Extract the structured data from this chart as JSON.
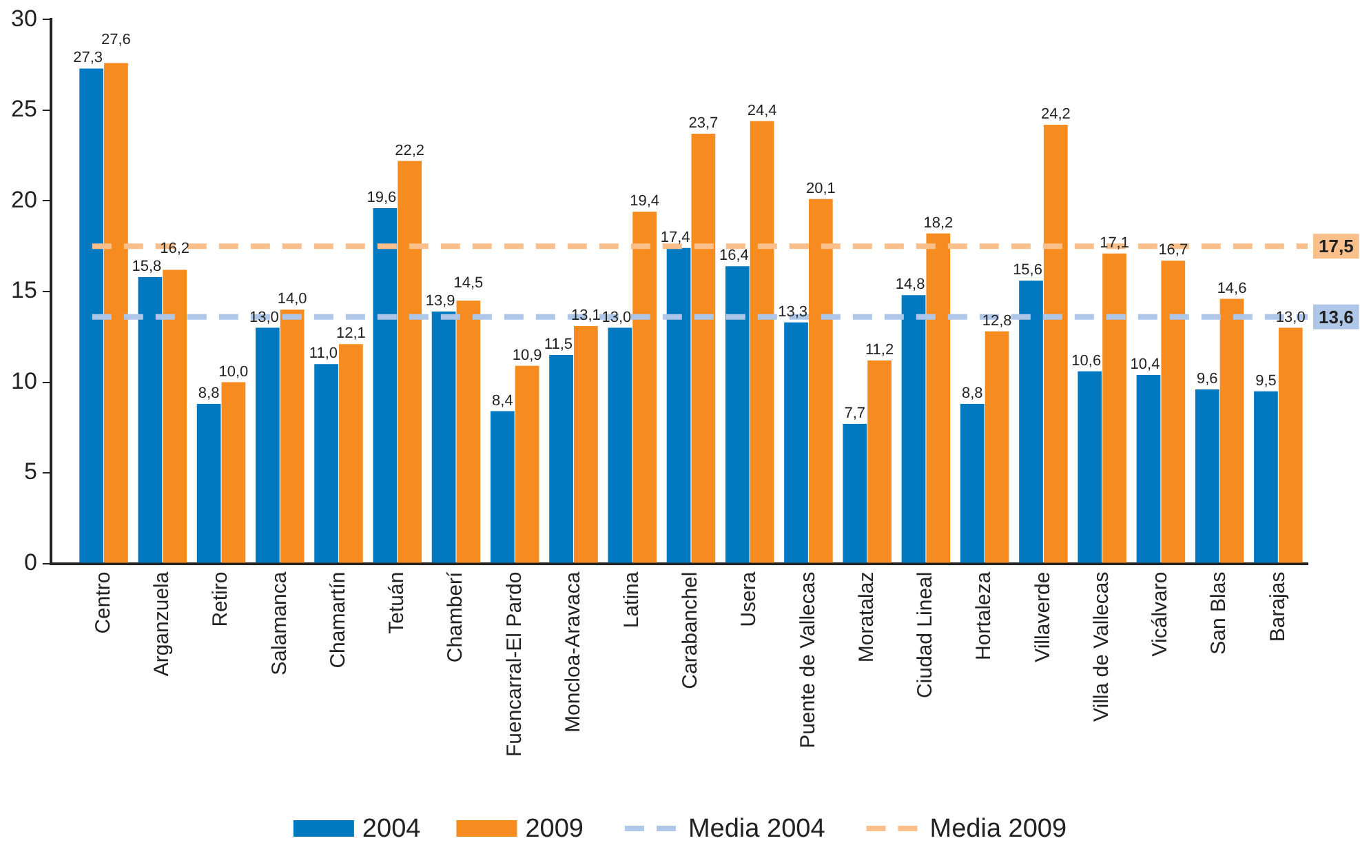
{
  "chart_data": {
    "type": "bar",
    "categories": [
      "Centro",
      "Arganzuela",
      "Retiro",
      "Salamanca",
      "Chamartín",
      "Tetuán",
      "Chamberí",
      "Fuencarral-El Pardo",
      "Moncloa-Aravaca",
      "Latina",
      "Carabanchel",
      "Usera",
      "Puente de Vallecas",
      "Moratalaz",
      "Ciudad Lineal",
      "Hortaleza",
      "Villaverde",
      "Villa de Vallecas",
      "Vicálvaro",
      "San Blas",
      "Barajas"
    ],
    "series": [
      {
        "name": "2004",
        "color": "#0079c1",
        "values": [
          27.3,
          15.8,
          8.8,
          13.0,
          11.0,
          19.6,
          13.9,
          8.4,
          11.5,
          13.0,
          17.4,
          16.4,
          13.3,
          7.7,
          14.8,
          8.8,
          15.6,
          10.6,
          10.4,
          9.6,
          9.5
        ],
        "value_labels": [
          "27,3",
          "15,8",
          "8,8",
          "13,0",
          "11,0",
          "19,6",
          "13,9",
          "8,4",
          "11,5",
          "13,0",
          "17,4",
          "16,4",
          "13,3",
          "7,7",
          "14,8",
          "8,8",
          "15,6",
          "10,6",
          "10,4",
          "9,6",
          "9,5"
        ]
      },
      {
        "name": "2009",
        "color": "#f68b1f",
        "values": [
          27.6,
          16.2,
          10.0,
          14.0,
          12.1,
          22.2,
          14.5,
          10.9,
          13.1,
          19.4,
          23.7,
          24.4,
          20.1,
          11.2,
          18.2,
          12.8,
          24.2,
          17.1,
          16.7,
          14.6,
          13.0
        ],
        "value_labels": [
          "27,6",
          "16,2",
          "10,0",
          "14,0",
          "12,1",
          "22,2",
          "14,5",
          "10,9",
          "13,1",
          "19,4",
          "23,7",
          "24,4",
          "20,1",
          "11,2",
          "18,2",
          "12,8",
          "24,2",
          "17,1",
          "16,7",
          "14,6",
          "13,0"
        ]
      }
    ],
    "ylim": [
      0,
      30
    ],
    "yticks": [
      0,
      5,
      10,
      15,
      20,
      25,
      30
    ],
    "grid": false,
    "legend": "bottom",
    "ref_lines": [
      {
        "axis": "y",
        "value": 13.6,
        "label": "Media 2004",
        "color": "#aec6e8",
        "line_style": "dashed"
      },
      {
        "axis": "y",
        "value": 17.5,
        "label": "Media 2009",
        "color": "#fbbf8c",
        "line_style": "dashed"
      }
    ],
    "annotations": [
      "13,6",
      "17,5"
    ]
  }
}
